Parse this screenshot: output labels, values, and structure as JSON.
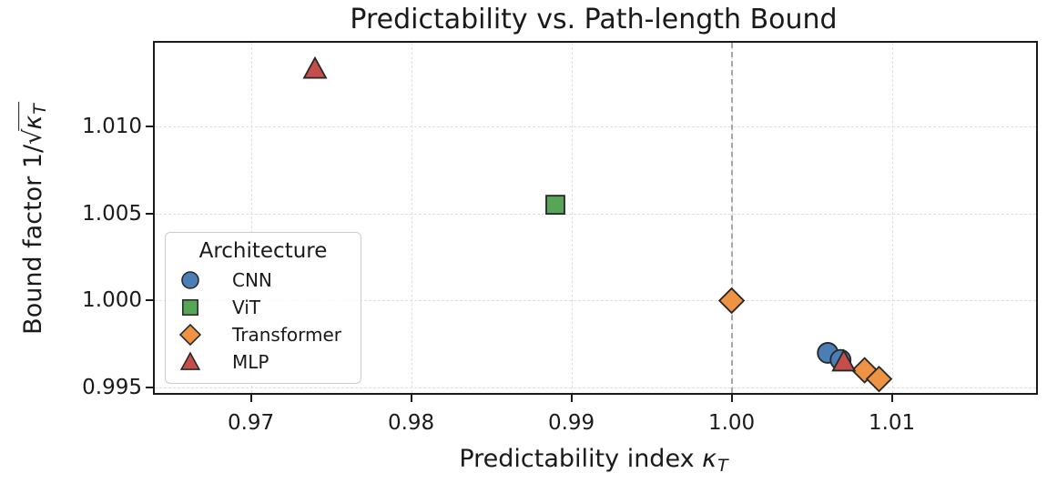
{
  "chart_data": {
    "type": "scatter",
    "title": "Predictability vs. Path-length Bound",
    "xlabel": {
      "text": "Predictability index",
      "symbol": "κ",
      "subscript": "T"
    },
    "ylabel": {
      "prefix": "Bound factor 1/",
      "sqrt_sign": "√",
      "sqrt_radicand": "κ",
      "sqrt_subscript": "T"
    },
    "x_ticks": {
      "values": [
        0.97,
        0.98,
        0.99,
        1.0,
        1.01
      ],
      "labels": [
        "0.97",
        "0.98",
        "0.99",
        "1.00",
        "1.01"
      ]
    },
    "y_ticks": {
      "values": [
        0.995,
        1.0,
        1.005,
        1.01
      ],
      "labels": [
        "0.995",
        "1.000",
        "1.005",
        "1.010"
      ]
    },
    "xlim": [
      0.964,
      1.019
    ],
    "ylim": [
      0.9947,
      1.0148
    ],
    "grid": true,
    "reference_line": {
      "x": 1.0,
      "style": "dashed",
      "color": "#a6a6a6"
    },
    "marker_edge_color": "#262626",
    "legend": {
      "title": "Architecture",
      "position": "center-left"
    },
    "series": [
      {
        "name": "CNN",
        "marker": "circle",
        "color": "#4a7eb4",
        "points": [
          [
            1.006,
            0.997
          ],
          [
            1.0068,
            0.9966
          ]
        ]
      },
      {
        "name": "ViT",
        "marker": "square",
        "color": "#57a657",
        "points": [
          [
            0.989,
            1.0055
          ]
        ]
      },
      {
        "name": "Transformer",
        "marker": "diamond",
        "color": "#ee9344",
        "points": [
          [
            1.0,
            1.0
          ],
          [
            1.0083,
            0.996
          ],
          [
            1.0092,
            0.9955
          ]
        ]
      },
      {
        "name": "MLP",
        "marker": "triangle",
        "color": "#c44e4a",
        "points": [
          [
            0.974,
            1.0133
          ],
          [
            1.007,
            0.9965
          ]
        ]
      }
    ]
  }
}
